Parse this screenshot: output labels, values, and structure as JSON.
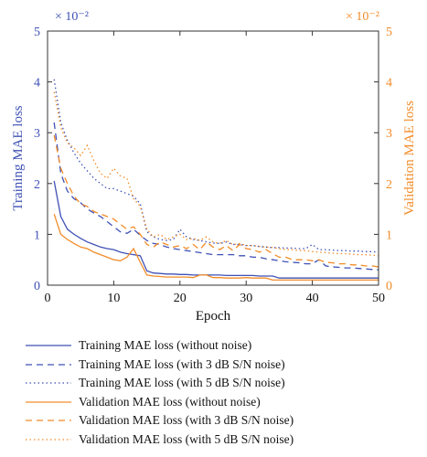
{
  "colors": {
    "training": "#3f51b5",
    "validation": "#f28c28",
    "axis": "#333333"
  },
  "chart_data": {
    "type": "line",
    "xlabel": "Epoch",
    "ylabel_left": "Training MAE loss",
    "ylabel_right": "Validation MAE loss",
    "scale_left": "× 10⁻²",
    "scale_right": "× 10⁻²",
    "xlim": [
      0,
      50
    ],
    "ylim_left": [
      0,
      5
    ],
    "ylim_right": [
      0,
      5
    ],
    "x_ticks": [
      "0",
      "10",
      "20",
      "30",
      "40",
      "50"
    ],
    "y_ticks_left": [
      "0",
      "1",
      "2",
      "3",
      "4",
      "5"
    ],
    "y_ticks_right": [
      "0",
      "1",
      "2",
      "3",
      "4",
      "5"
    ],
    "grid": false,
    "legend_position": "below",
    "x": [
      1,
      2,
      3,
      4,
      5,
      6,
      7,
      8,
      9,
      10,
      11,
      12,
      13,
      14,
      15,
      16,
      17,
      18,
      19,
      20,
      21,
      22,
      23,
      24,
      25,
      26,
      27,
      28,
      29,
      30,
      31,
      32,
      33,
      34,
      35,
      36,
      37,
      38,
      39,
      40,
      41,
      42,
      43,
      44,
      45,
      46,
      47,
      48,
      49,
      50
    ],
    "series": [
      {
        "name": "Training MAE loss (without noise)",
        "axis": "left",
        "style": "solid",
        "color": "training",
        "values": [
          2.05,
          1.35,
          1.1,
          1.0,
          0.92,
          0.85,
          0.8,
          0.75,
          0.72,
          0.7,
          0.65,
          0.62,
          0.6,
          0.58,
          0.28,
          0.24,
          0.23,
          0.22,
          0.22,
          0.21,
          0.21,
          0.2,
          0.2,
          0.2,
          0.2,
          0.2,
          0.19,
          0.19,
          0.19,
          0.19,
          0.19,
          0.18,
          0.18,
          0.18,
          0.14,
          0.14,
          0.14,
          0.14,
          0.14,
          0.14,
          0.14,
          0.14,
          0.14,
          0.14,
          0.14,
          0.14,
          0.14,
          0.14,
          0.14,
          0.14
        ]
      },
      {
        "name": "Training MAE loss (with 3 dB S/N noise)",
        "axis": "left",
        "style": "dashed",
        "color": "training",
        "values": [
          3.2,
          2.2,
          1.85,
          1.7,
          1.62,
          1.5,
          1.42,
          1.35,
          1.25,
          1.15,
          1.05,
          1.02,
          1.1,
          0.98,
          0.88,
          0.82,
          0.8,
          0.75,
          0.72,
          0.7,
          0.68,
          0.66,
          0.64,
          0.62,
          0.6,
          0.6,
          0.6,
          0.6,
          0.58,
          0.58,
          0.55,
          0.55,
          0.52,
          0.5,
          0.48,
          0.46,
          0.45,
          0.44,
          0.42,
          0.42,
          0.5,
          0.38,
          0.36,
          0.35,
          0.34,
          0.34,
          0.33,
          0.32,
          0.31,
          0.3
        ]
      },
      {
        "name": "Training MAE loss (with 5 dB S/N noise)",
        "axis": "left",
        "style": "dotted",
        "color": "training",
        "values": [
          4.05,
          3.2,
          2.85,
          2.6,
          2.4,
          2.25,
          2.1,
          2.0,
          1.9,
          1.9,
          1.85,
          1.8,
          1.75,
          1.6,
          1.05,
          0.95,
          0.9,
          0.88,
          0.9,
          1.1,
          0.95,
          0.9,
          0.88,
          0.85,
          0.83,
          0.82,
          0.85,
          0.8,
          0.8,
          0.78,
          0.78,
          0.76,
          0.75,
          0.74,
          0.74,
          0.73,
          0.73,
          0.72,
          0.72,
          0.8,
          0.7,
          0.7,
          0.69,
          0.68,
          0.68,
          0.67,
          0.67,
          0.66,
          0.66,
          0.65
        ]
      },
      {
        "name": "Validation MAE loss (without noise)",
        "axis": "right",
        "style": "solid",
        "color": "validation",
        "values": [
          1.4,
          1.0,
          0.9,
          0.82,
          0.75,
          0.72,
          0.65,
          0.6,
          0.55,
          0.5,
          0.48,
          0.55,
          0.72,
          0.45,
          0.2,
          0.18,
          0.17,
          0.16,
          0.16,
          0.16,
          0.16,
          0.15,
          0.2,
          0.2,
          0.15,
          0.15,
          0.14,
          0.14,
          0.14,
          0.15,
          0.14,
          0.14,
          0.14,
          0.1,
          0.1,
          0.1,
          0.1,
          0.1,
          0.1,
          0.1,
          0.1,
          0.1,
          0.1,
          0.1,
          0.1,
          0.1,
          0.1,
          0.1,
          0.1,
          0.1
        ]
      },
      {
        "name": "Validation MAE loss (with 3 dB S/N noise)",
        "axis": "right",
        "style": "dashed",
        "color": "validation",
        "values": [
          2.95,
          2.3,
          2.0,
          1.75,
          1.6,
          1.55,
          1.45,
          1.4,
          1.35,
          1.3,
          1.2,
          1.1,
          1.15,
          1.0,
          0.8,
          0.75,
          0.85,
          0.8,
          0.75,
          0.78,
          0.72,
          0.8,
          0.7,
          0.85,
          0.75,
          0.7,
          0.78,
          0.68,
          0.8,
          0.72,
          0.7,
          0.65,
          0.7,
          0.62,
          0.55,
          0.55,
          0.5,
          0.5,
          0.5,
          0.48,
          0.5,
          0.45,
          0.44,
          0.42,
          0.42,
          0.4,
          0.4,
          0.38,
          0.38,
          0.36
        ]
      },
      {
        "name": "Validation MAE loss (with 5 dB S/N noise)",
        "axis": "right",
        "style": "dotted",
        "color": "validation",
        "values": [
          3.8,
          3.1,
          2.8,
          2.7,
          2.55,
          2.75,
          2.45,
          2.2,
          2.1,
          2.3,
          2.15,
          2.1,
          1.7,
          1.55,
          1.1,
          0.95,
          1.0,
          0.9,
          0.95,
          1.0,
          0.9,
          0.92,
          0.88,
          0.95,
          0.85,
          0.82,
          0.88,
          0.8,
          0.82,
          0.78,
          0.78,
          0.76,
          0.75,
          0.74,
          0.72,
          0.7,
          0.7,
          0.68,
          0.68,
          0.66,
          0.65,
          0.64,
          0.63,
          0.62,
          0.62,
          0.61,
          0.6,
          0.6,
          0.59,
          0.58
        ]
      }
    ]
  }
}
